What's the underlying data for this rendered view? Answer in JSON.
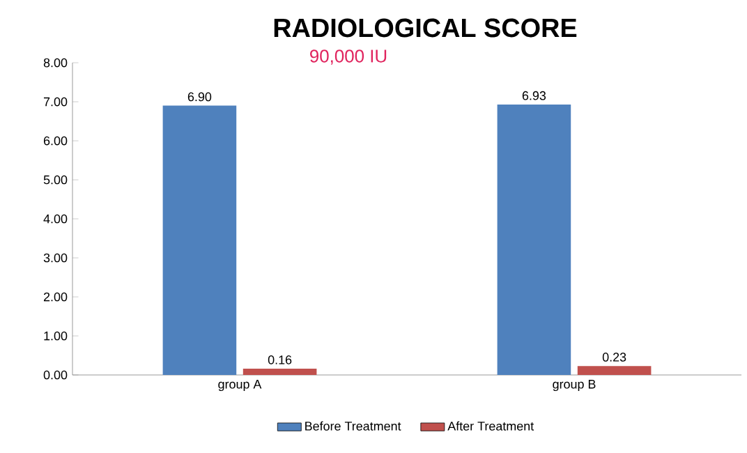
{
  "chart_data": {
    "type": "bar",
    "title": "RADIOLOGICAL SCORE",
    "subtitle": "90,000 IU",
    "categories": [
      "group A",
      "group B"
    ],
    "series": [
      {
        "name": "Before Treatment",
        "color": "#4f81bd",
        "values": [
          6.9,
          6.93
        ],
        "value_labels": [
          "6.90",
          "6.93"
        ]
      },
      {
        "name": "After Treatment",
        "color": "#c0504d",
        "values": [
          0.16,
          0.23
        ],
        "value_labels": [
          "0.16",
          "0.23"
        ]
      }
    ],
    "ylim": [
      0,
      8
    ],
    "yticks": [
      {
        "value": 0,
        "label": "0.00"
      },
      {
        "value": 1,
        "label": "1.00"
      },
      {
        "value": 2,
        "label": "2.00"
      },
      {
        "value": 3,
        "label": "3.00"
      },
      {
        "value": 4,
        "label": "4.00"
      },
      {
        "value": 5,
        "label": "5.00"
      },
      {
        "value": 6,
        "label": "6.00"
      },
      {
        "value": 7,
        "label": "7.00"
      },
      {
        "value": 8,
        "label": "8.00"
      }
    ],
    "grid": false,
    "legend": "bottom"
  }
}
